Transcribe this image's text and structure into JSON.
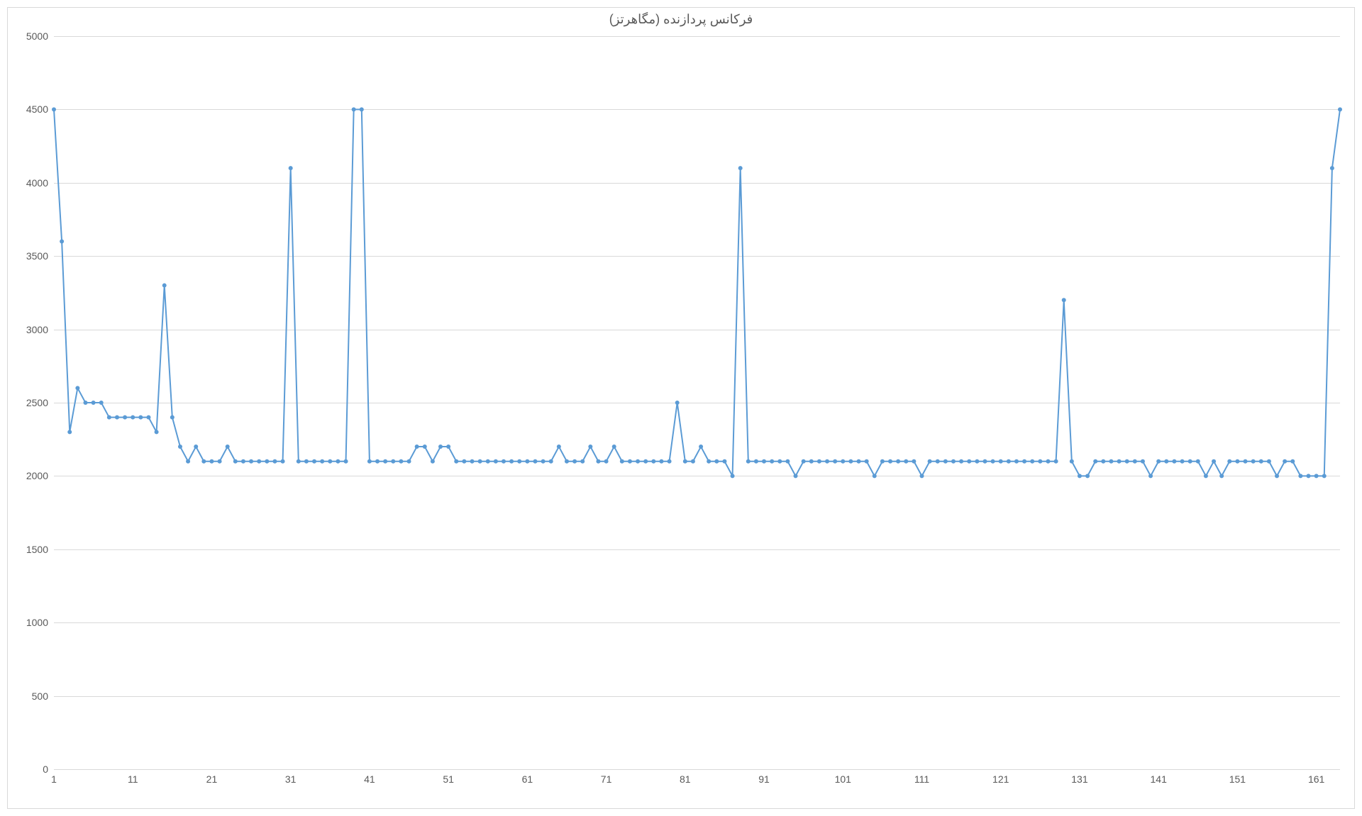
{
  "chart": {
    "type": "line",
    "title": "فرکانس پردازنده (مگاهرتز)",
    "title_fontsize": 18,
    "title_color": "#595959",
    "background_color": "#ffffff",
    "grid_color": "#d9d9d9",
    "axis_label_color": "#595959",
    "axis_label_fontsize": 14,
    "line_color": "#5b9bd5",
    "line_width": 2,
    "marker_color": "#5b9bd5",
    "marker_style": "circle",
    "marker_size": 3,
    "ylim": [
      0,
      5000
    ],
    "ytick_step": 500,
    "yticks": [
      0,
      500,
      1000,
      1500,
      2000,
      2500,
      3000,
      3500,
      4000,
      4500,
      5000
    ],
    "xlim": [
      1,
      165
    ],
    "xtick_start": 1,
    "xtick_step": 10,
    "xticks": [
      1,
      11,
      21,
      31,
      41,
      51,
      61,
      71,
      81,
      91,
      101,
      111,
      121,
      131,
      141,
      151,
      161
    ],
    "values": [
      4500,
      3600,
      2300,
      2600,
      2500,
      2500,
      2500,
      2400,
      2400,
      2400,
      2400,
      2400,
      2400,
      2300,
      3300,
      2400,
      2200,
      2100,
      2200,
      2100,
      2100,
      2100,
      2200,
      2100,
      2100,
      2100,
      2100,
      2100,
      2100,
      2100,
      4100,
      2100,
      2100,
      2100,
      2100,
      2100,
      2100,
      2100,
      4500,
      4500,
      2100,
      2100,
      2100,
      2100,
      2100,
      2100,
      2200,
      2200,
      2100,
      2200,
      2200,
      2100,
      2100,
      2100,
      2100,
      2100,
      2100,
      2100,
      2100,
      2100,
      2100,
      2100,
      2100,
      2100,
      2200,
      2100,
      2100,
      2100,
      2200,
      2100,
      2100,
      2200,
      2100,
      2100,
      2100,
      2100,
      2100,
      2100,
      2100,
      2500,
      2100,
      2100,
      2200,
      2100,
      2100,
      2100,
      2000,
      4100,
      2100,
      2100,
      2100,
      2100,
      2100,
      2100,
      2000,
      2100,
      2100,
      2100,
      2100,
      2100,
      2100,
      2100,
      2100,
      2100,
      2000,
      2100,
      2100,
      2100,
      2100,
      2100,
      2000,
      2100,
      2100,
      2100,
      2100,
      2100,
      2100,
      2100,
      2100,
      2100,
      2100,
      2100,
      2100,
      2100,
      2100,
      2100,
      2100,
      2100,
      3200,
      2100,
      2000,
      2000,
      2100,
      2100,
      2100,
      2100,
      2100,
      2100,
      2100,
      2000,
      2100,
      2100,
      2100,
      2100,
      2100,
      2100,
      2000,
      2100,
      2000,
      2100,
      2100,
      2100,
      2100,
      2100,
      2100,
      2000,
      2100,
      2100,
      2000,
      2000,
      2000,
      2000,
      4100,
      4500
    ]
  }
}
